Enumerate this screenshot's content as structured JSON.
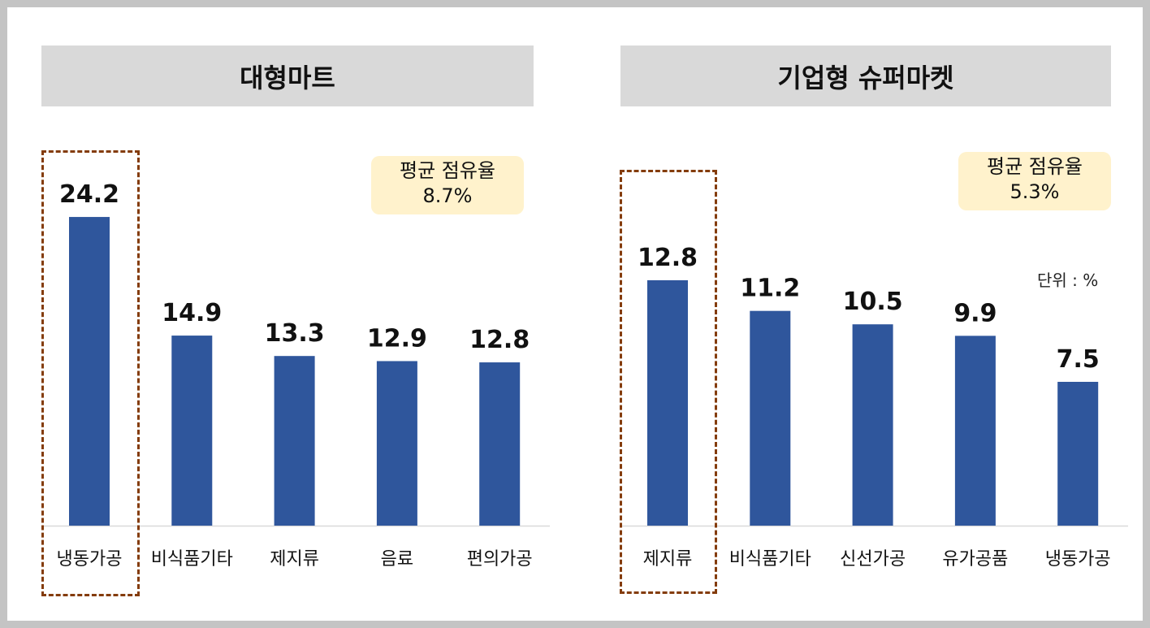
{
  "chart_data": [
    {
      "type": "bar",
      "title": "대형마트",
      "categories": [
        "냉동가공",
        "비식품기타",
        "제지류",
        "음료",
        "편의가공"
      ],
      "values": [
        24.2,
        14.9,
        13.3,
        12.9,
        12.8
      ],
      "highlight_index": 0,
      "average": {
        "label": "평균 점유율",
        "value": "8.7%"
      },
      "bar_color": "#2f569c",
      "highlight_color": "#843c0c",
      "avg_box_color": "#fff2cc"
    },
    {
      "type": "bar",
      "title": "기업형 슈퍼마켓",
      "categories": [
        "제지류",
        "비식품기타",
        "신선가공",
        "유가공품",
        "냉동가공"
      ],
      "values": [
        12.8,
        11.2,
        10.5,
        9.9,
        7.5
      ],
      "highlight_index": 0,
      "average": {
        "label": "평균 점유율",
        "value": "5.3%"
      },
      "unit_label": "단위 : %",
      "bar_color": "#2f569c",
      "highlight_color": "#843c0c",
      "avg_box_color": "#fff2cc"
    }
  ]
}
